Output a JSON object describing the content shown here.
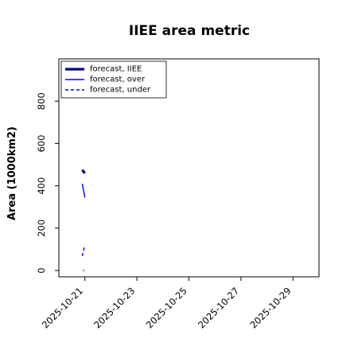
{
  "chart_data": {
    "type": "line",
    "title": "IIEE area metric",
    "xlabel": "",
    "ylabel": "Area (1000km2)",
    "xlim": [
      "2025-10-20",
      "2025-10-30"
    ],
    "ylim": [
      -30,
      1000
    ],
    "x_ticks": [
      "2025-10-21",
      "2025-10-23",
      "2025-10-25",
      "2025-10-27",
      "2025-10-29"
    ],
    "x_tick_colors": [
      "#008000",
      "#000000",
      "#000000",
      "#000000",
      "#000000"
    ],
    "y_ticks": [
      0,
      200,
      400,
      600,
      800
    ],
    "grid": false,
    "legend_position": "top-left",
    "series": [
      {
        "name": "forecast, IIEE",
        "style": "solid-thick",
        "color": "#00007f",
        "points": [
          [
            "2025-10-20.9",
            475
          ],
          [
            "2025-10-21.0",
            460
          ]
        ]
      },
      {
        "name": "forecast, over",
        "style": "solid",
        "color": "#0000ff",
        "points": [
          [
            "2025-10-20.9",
            410
          ],
          [
            "2025-10-21.0",
            345
          ]
        ]
      },
      {
        "name": "forecast, under",
        "style": "dashed",
        "color": "#0000ff",
        "points": [
          [
            "2025-10-20.9",
            68
          ],
          [
            "2025-10-21.0",
            120
          ]
        ]
      }
    ],
    "reference_line": {
      "color": "#808080",
      "points": [
        [
          "2025-10-20.9",
          0
        ],
        [
          "2025-10-21.0",
          0
        ]
      ]
    }
  }
}
